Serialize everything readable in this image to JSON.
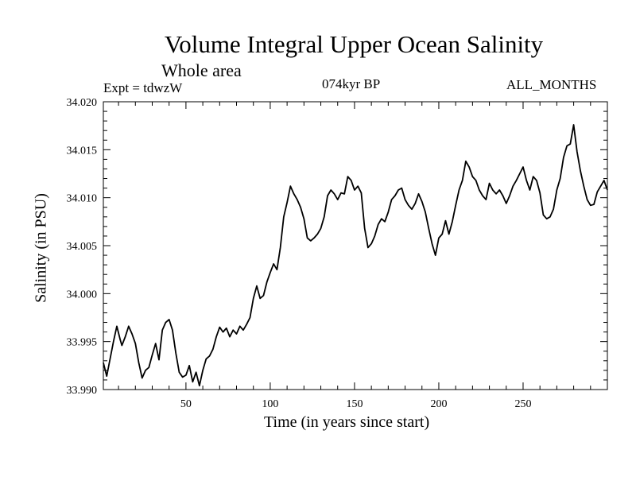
{
  "chart_data": {
    "type": "line",
    "title": "Volume Integral Upper Ocean Salinity",
    "subtitle": "Whole area",
    "experiment_label": "Expt = tdwzW",
    "period_label": "074kyr BP",
    "months_label": "ALL_MONTHS",
    "xlabel": "Time (in years since start)",
    "ylabel": "Salinity (in PSU)",
    "xlim": [
      1,
      300
    ],
    "ylim": [
      33.99,
      34.02
    ],
    "xticks": [
      50,
      100,
      150,
      200,
      250
    ],
    "xtick_labels": [
      "50",
      "100",
      "150",
      "200",
      "250"
    ],
    "yticks": [
      33.99,
      33.995,
      34.0,
      34.005,
      34.01,
      34.015,
      34.02
    ],
    "ytick_labels": [
      "33.990",
      "33.995",
      "34.000",
      "34.005",
      "34.010",
      "34.015",
      "34.020"
    ],
    "grid": false,
    "line_color": "#000000",
    "series": [
      {
        "x": [
          1,
          3,
          5,
          7,
          9,
          11,
          12,
          14,
          16,
          18,
          20,
          22,
          24,
          26,
          28,
          30,
          32,
          34,
          36,
          38,
          40,
          42,
          44,
          46,
          48,
          50,
          52,
          54,
          56,
          58,
          60,
          62,
          64,
          66,
          68,
          70,
          72,
          74,
          76,
          78,
          80,
          82,
          84,
          86,
          88,
          90,
          92,
          94,
          96,
          98,
          100,
          102,
          104,
          106,
          108,
          110,
          112,
          114,
          116,
          118,
          120,
          122,
          124,
          126,
          128,
          130,
          132,
          134,
          136,
          138,
          140,
          142,
          144,
          146,
          148,
          150,
          152,
          154,
          156,
          158,
          160,
          162,
          164,
          166,
          168,
          170,
          172,
          174,
          176,
          178,
          180,
          182,
          184,
          186,
          188,
          190,
          192,
          194,
          196,
          198,
          200,
          202,
          204,
          206,
          208,
          210,
          212,
          214,
          216,
          218,
          220,
          222,
          224,
          226,
          228,
          230,
          232,
          234,
          236,
          238,
          240,
          242,
          244,
          246,
          248,
          250,
          252,
          254,
          256,
          258,
          260,
          262,
          264,
          266,
          268,
          270,
          272,
          274,
          276,
          278,
          280,
          282,
          284,
          286,
          288,
          290,
          292,
          294,
          296,
          298,
          300
        ],
        "y": [
          33.9928,
          33.9914,
          33.9932,
          33.995,
          33.9966,
          33.9952,
          33.9946,
          33.9955,
          33.9966,
          33.9958,
          33.9948,
          33.9928,
          33.9912,
          33.992,
          33.9923,
          33.9936,
          33.9948,
          33.9931,
          33.9962,
          33.997,
          33.9973,
          33.9962,
          33.9938,
          33.9918,
          33.9913,
          33.9915,
          33.9925,
          33.9908,
          33.9918,
          33.9904,
          33.992,
          33.9932,
          33.9935,
          33.9942,
          33.9955,
          33.9965,
          33.996,
          33.9964,
          33.9955,
          33.9962,
          33.9958,
          33.9966,
          33.9962,
          33.9968,
          33.9975,
          33.9995,
          34.0008,
          33.9995,
          33.9998,
          34.0012,
          34.0022,
          34.0031,
          34.0025,
          34.0048,
          34.008,
          34.0095,
          34.0112,
          34.0104,
          34.0098,
          34.009,
          34.0078,
          34.0058,
          34.0055,
          34.0058,
          34.0062,
          34.0068,
          34.008,
          34.0102,
          34.0108,
          34.0104,
          34.0098,
          34.0105,
          34.0104,
          34.0122,
          34.0118,
          34.0108,
          34.0112,
          34.0105,
          34.0068,
          34.0048,
          34.0052,
          34.006,
          34.0072,
          34.0078,
          34.0075,
          34.0085,
          34.0098,
          34.0102,
          34.0108,
          34.011,
          34.0098,
          34.0092,
          34.0088,
          34.0094,
          34.0104,
          34.0096,
          34.0085,
          34.0068,
          34.0052,
          34.004,
          34.0058,
          34.0062,
          34.0076,
          34.0062,
          34.0075,
          34.0092,
          34.0108,
          34.0118,
          34.0138,
          34.0132,
          34.0122,
          34.0118,
          34.0108,
          34.0102,
          34.0098,
          34.0115,
          34.0108,
          34.0104,
          34.0108,
          34.0102,
          34.0094,
          34.0102,
          34.0112,
          34.0118,
          34.0125,
          34.0132,
          34.0118,
          34.0108,
          34.0122,
          34.0118,
          34.0105,
          34.0082,
          34.0078,
          34.008,
          34.0088,
          34.0108,
          34.012,
          34.0142,
          34.0154,
          34.0156,
          34.0176,
          34.0148,
          34.0128,
          34.0112,
          34.0098,
          34.0092,
          34.0093,
          34.0106,
          34.0112,
          34.0118,
          34.0108
        ]
      }
    ]
  }
}
